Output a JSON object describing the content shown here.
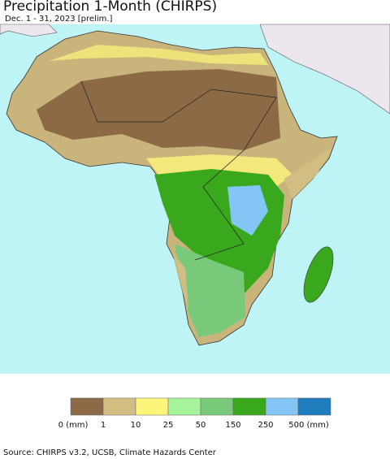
{
  "header": {
    "title": "Precipitation 1-Month (CHIRPS)",
    "subtitle": "Dec. 1 - 31, 2023 [prelim.]"
  },
  "legend": {
    "colors": [
      "#8b6a45",
      "#d2bd82",
      "#fdf57a",
      "#a6f39c",
      "#79c97a",
      "#3aa81c",
      "#83c6f5",
      "#1f7cbd"
    ],
    "labels": [
      "0 (mm)",
      "1",
      "10",
      "25",
      "50",
      "150",
      "250",
      "500 (mm)"
    ]
  },
  "footer": {
    "source": "Source: CHIRPS v3.2, UCSB, Climate Hazards Center"
  }
}
